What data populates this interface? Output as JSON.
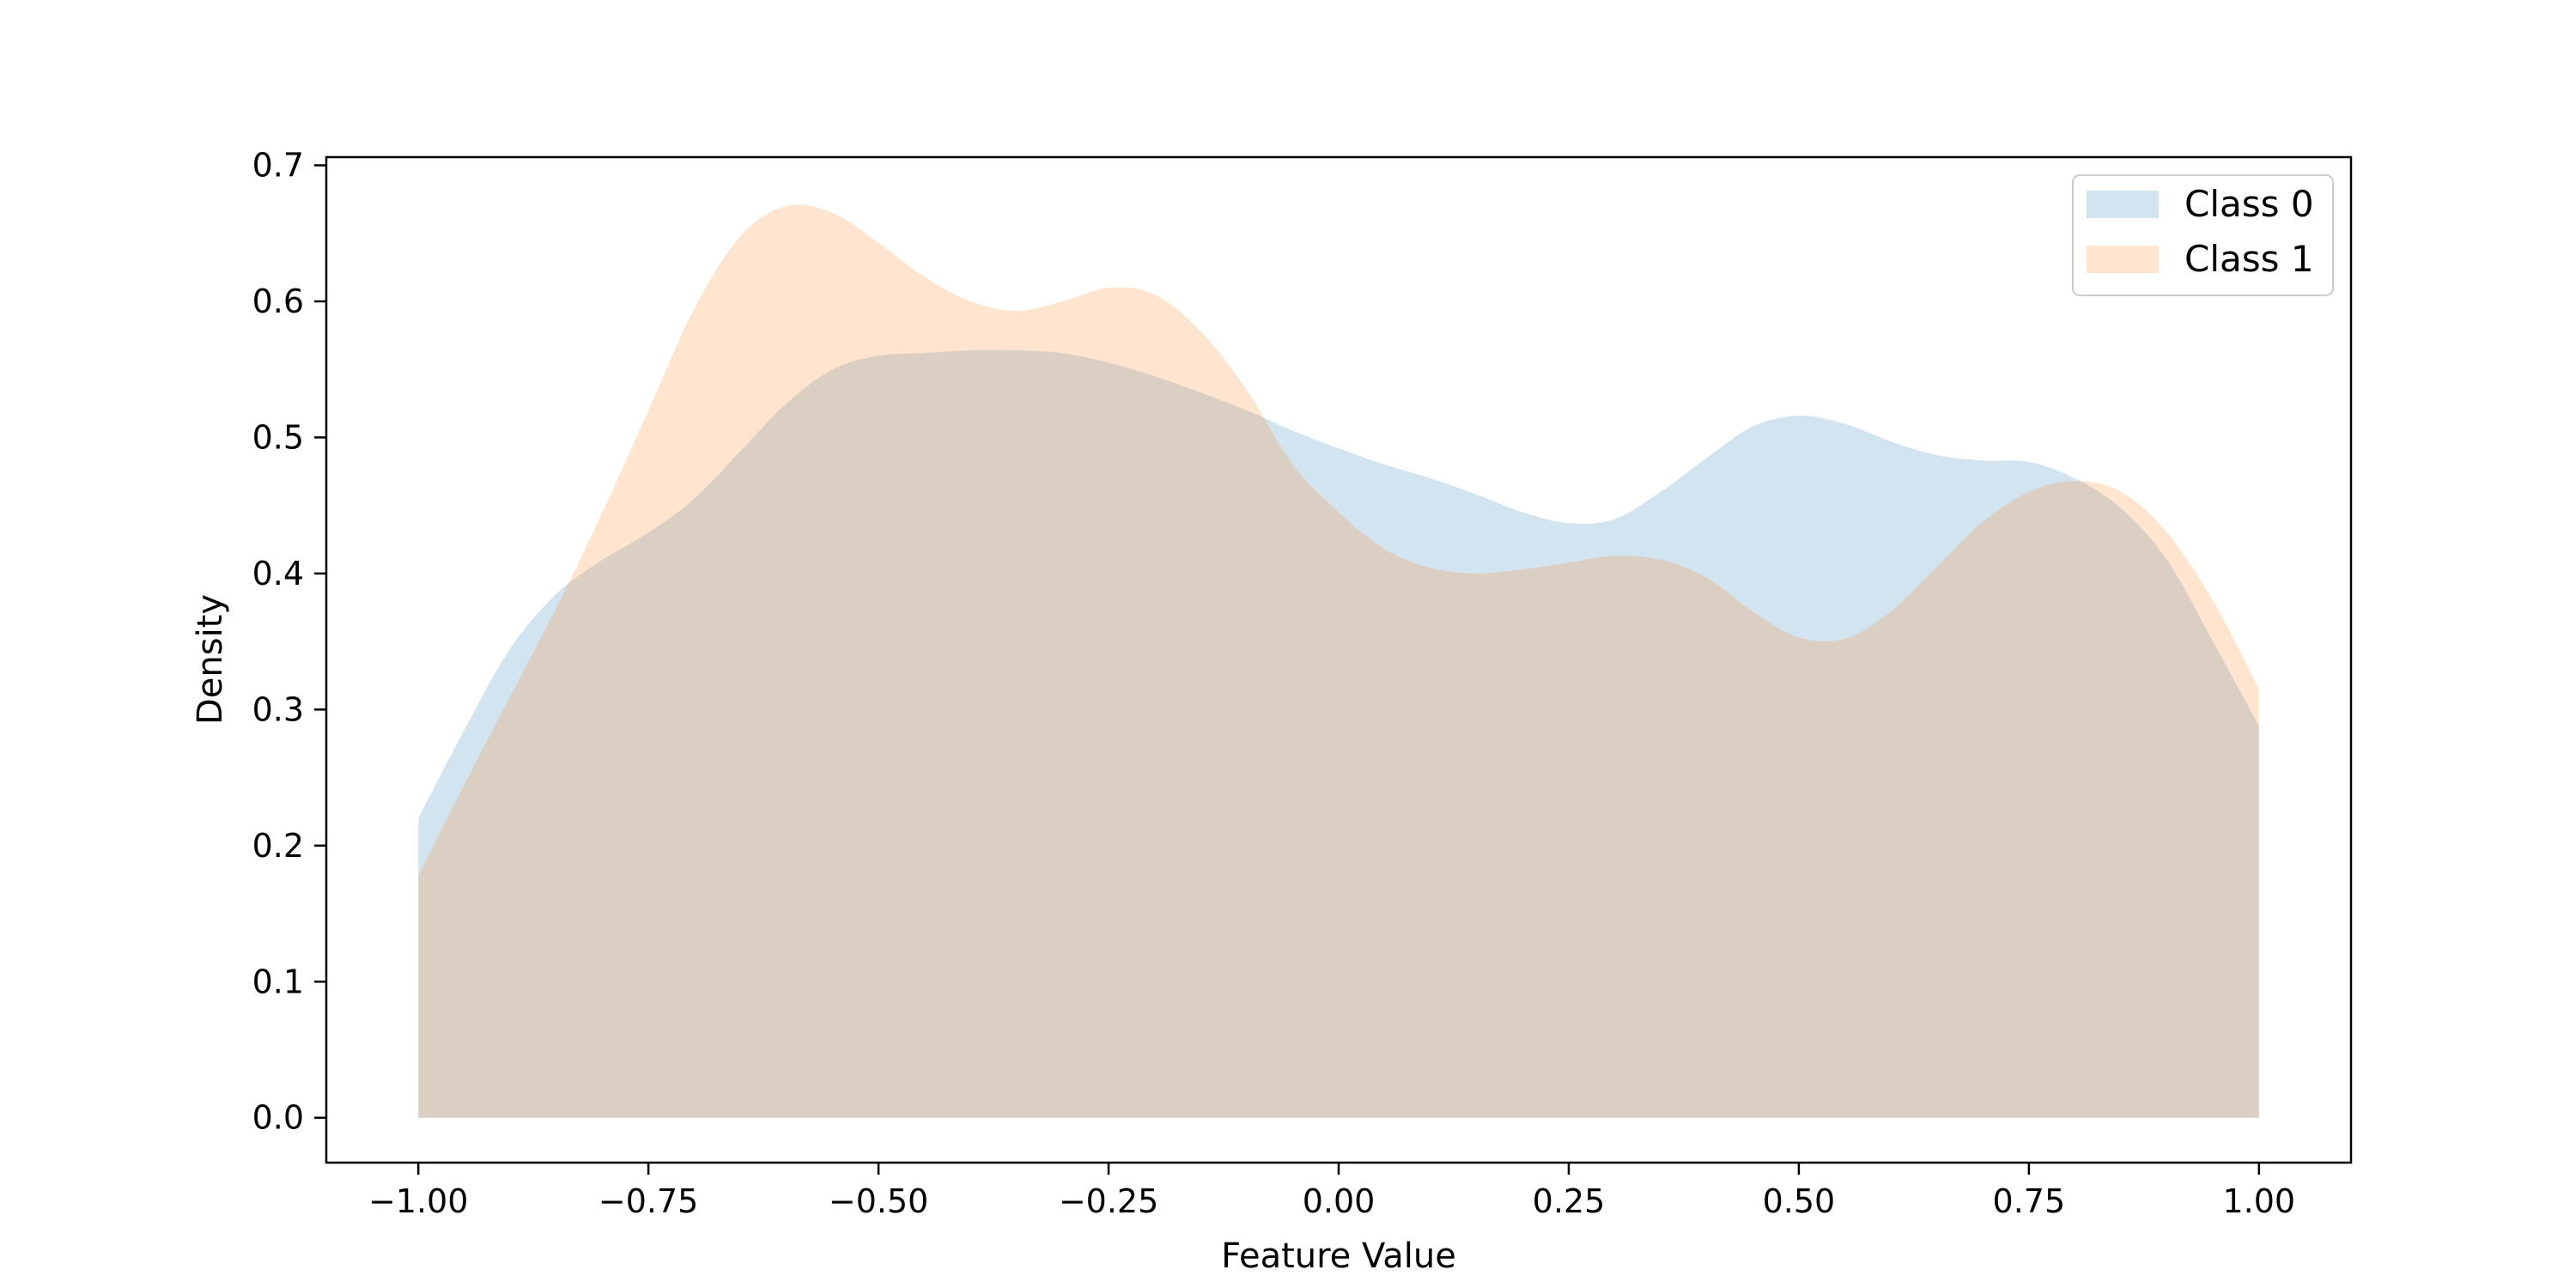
{
  "chart_data": {
    "type": "area",
    "title": "",
    "xlabel": "Feature Value",
    "ylabel": "Density",
    "xlim": [
      -1.1,
      1.1
    ],
    "ylim": [
      -0.033,
      0.706
    ],
    "xticks": [
      -1.0,
      -0.75,
      -0.5,
      -0.25,
      0.0,
      0.25,
      0.5,
      0.75,
      1.0
    ],
    "xtick_labels": [
      "−1.00",
      "−0.75",
      "−0.50",
      "−0.25",
      "0.00",
      "0.25",
      "0.50",
      "0.75",
      "1.00"
    ],
    "yticks": [
      0.0,
      0.1,
      0.2,
      0.3,
      0.4,
      0.5,
      0.6,
      0.7
    ],
    "ytick_labels": [
      "0.0",
      "0.1",
      "0.2",
      "0.3",
      "0.4",
      "0.5",
      "0.6",
      "0.7"
    ],
    "grid": false,
    "legend_position": "top-right",
    "series": [
      {
        "name": "Class 0",
        "color": "#1f77b4",
        "x": [
          -1.0,
          -0.95,
          -0.9,
          -0.85,
          -0.8,
          -0.75,
          -0.7,
          -0.65,
          -0.6,
          -0.55,
          -0.5,
          -0.45,
          -0.4,
          -0.35,
          -0.3,
          -0.25,
          -0.2,
          -0.15,
          -0.1,
          -0.05,
          0.0,
          0.05,
          0.1,
          0.15,
          0.2,
          0.25,
          0.3,
          0.35,
          0.4,
          0.45,
          0.5,
          0.55,
          0.6,
          0.65,
          0.7,
          0.75,
          0.8,
          0.85,
          0.9,
          0.95,
          1.0
        ],
        "y": [
          0.22,
          0.285,
          0.345,
          0.385,
          0.41,
          0.43,
          0.455,
          0.49,
          0.525,
          0.55,
          0.56,
          0.562,
          0.564,
          0.564,
          0.562,
          0.555,
          0.545,
          0.533,
          0.52,
          0.505,
          0.492,
          0.48,
          0.47,
          0.458,
          0.445,
          0.437,
          0.44,
          0.46,
          0.485,
          0.508,
          0.516,
          0.51,
          0.497,
          0.487,
          0.483,
          0.482,
          0.47,
          0.448,
          0.41,
          0.35,
          0.288
        ]
      },
      {
        "name": "Class 1",
        "color": "#ff7f0e",
        "x": [
          -1.0,
          -0.95,
          -0.9,
          -0.85,
          -0.8,
          -0.75,
          -0.7,
          -0.65,
          -0.6,
          -0.55,
          -0.5,
          -0.45,
          -0.4,
          -0.35,
          -0.3,
          -0.25,
          -0.2,
          -0.15,
          -0.1,
          -0.05,
          0.0,
          0.05,
          0.1,
          0.15,
          0.2,
          0.25,
          0.3,
          0.35,
          0.4,
          0.45,
          0.5,
          0.55,
          0.6,
          0.65,
          0.7,
          0.75,
          0.8,
          0.85,
          0.9,
          0.95,
          1.0
        ],
        "y": [
          0.178,
          0.245,
          0.31,
          0.375,
          0.445,
          0.52,
          0.595,
          0.648,
          0.67,
          0.665,
          0.643,
          0.618,
          0.6,
          0.593,
          0.6,
          0.61,
          0.605,
          0.578,
          0.535,
          0.48,
          0.445,
          0.418,
          0.404,
          0.4,
          0.403,
          0.408,
          0.413,
          0.41,
          0.397,
          0.372,
          0.353,
          0.352,
          0.372,
          0.405,
          0.438,
          0.46,
          0.468,
          0.46,
          0.43,
          0.38,
          0.315
        ]
      }
    ]
  }
}
